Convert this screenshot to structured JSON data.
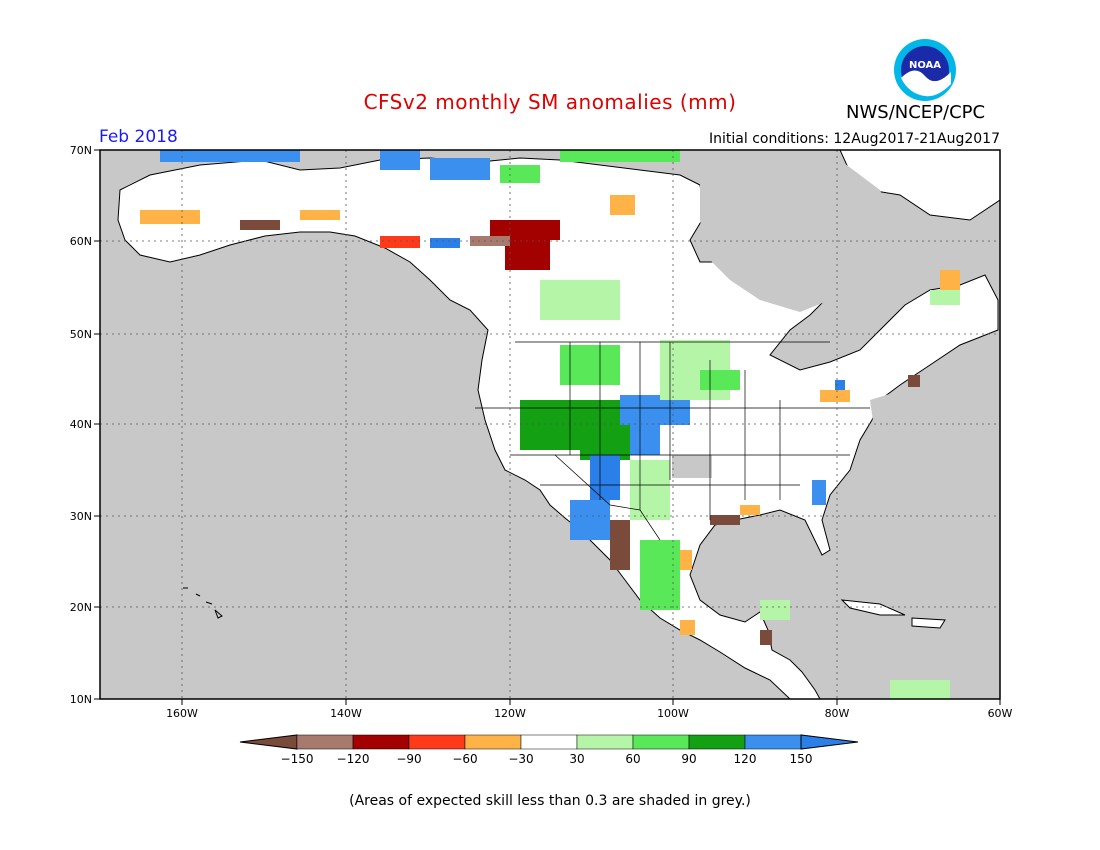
{
  "header": {
    "title": "CFSv2 monthly SM anomalies (mm)",
    "agency": "NWS/NCEP/CPC",
    "logo_text": "NOAA",
    "valid_month": "Feb 2018",
    "initial_conditions": "Initial conditions: 12Aug2017-21Aug2017"
  },
  "axes": {
    "lat_labels": [
      "70N",
      "60N",
      "50N",
      "40N",
      "30N",
      "20N",
      "10N"
    ],
    "lon_labels": [
      "160W",
      "140W",
      "120W",
      "100W",
      "80W",
      "60W"
    ]
  },
  "colorbar": {
    "labels": [
      "-150",
      "-120",
      "-90",
      "-60",
      "-30",
      "30",
      "60",
      "90",
      "120",
      "150"
    ],
    "colors": [
      "#7a4a3a",
      "#a87a6e",
      "#a30000",
      "#ff3a1a",
      "#ffb347",
      "#ffffff",
      "#b5f5a8",
      "#58e858",
      "#13a013",
      "#3a8fef",
      "#2a7fe8"
    ]
  },
  "map_colors": {
    "ocean_grey": "#c8c8c8",
    "land_white": "#ffffff",
    "coast": "#000000"
  },
  "footnote": "(Areas of expected skill less than 0.3 are shaded in grey.)"
}
